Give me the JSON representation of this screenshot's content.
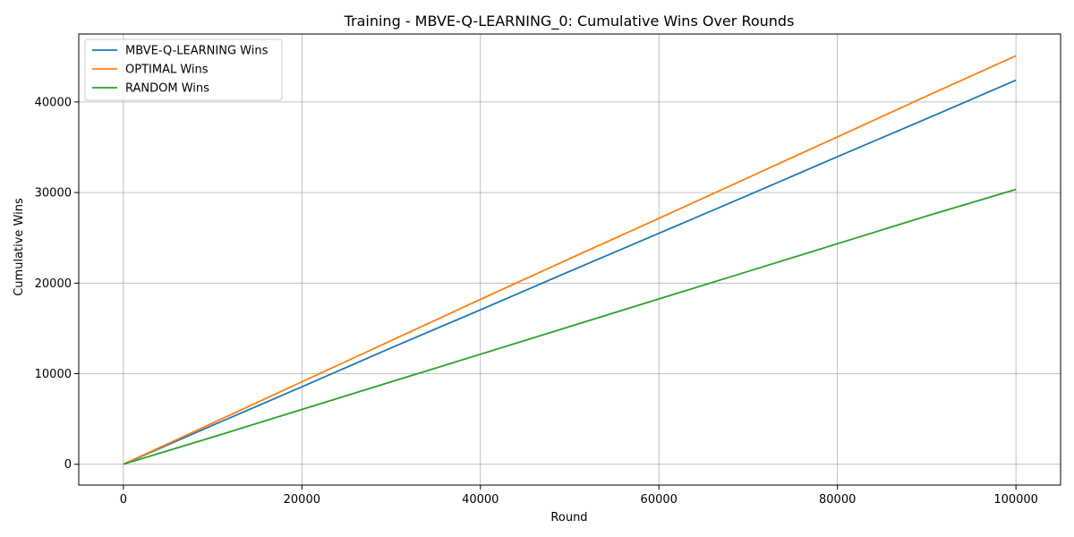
{
  "chart_data": {
    "type": "line",
    "title": "Training - MBVE-Q-LEARNING_0: Cumulative Wins Over Rounds",
    "xlabel": "Round",
    "ylabel": "Cumulative Wins",
    "xlim": [
      -5000,
      105000
    ],
    "ylim": [
      -2300,
      47500
    ],
    "xticks": [
      0,
      20000,
      40000,
      60000,
      80000,
      100000
    ],
    "yticks": [
      0,
      10000,
      20000,
      30000,
      40000
    ],
    "grid": true,
    "legend_position": "top-left",
    "x": [
      0,
      10000,
      20000,
      30000,
      40000,
      50000,
      60000,
      70000,
      80000,
      90000,
      100000
    ],
    "series": [
      {
        "name": "MBVE-Q-LEARNING Wins",
        "color": "#1f77b4",
        "values": [
          0,
          4300,
          8550,
          12850,
          17050,
          21300,
          25500,
          29700,
          33950,
          38150,
          42400
        ]
      },
      {
        "name": "OPTIMAL Wins",
        "color": "#ff7f0e",
        "values": [
          0,
          4550,
          9100,
          13650,
          18200,
          22700,
          27150,
          31650,
          36150,
          40650,
          45100
        ]
      },
      {
        "name": "RANDOM Wins",
        "color": "#2ca02c",
        "values": [
          0,
          3000,
          6050,
          9100,
          12150,
          15200,
          18250,
          21300,
          24350,
          27400,
          30350
        ]
      }
    ]
  }
}
